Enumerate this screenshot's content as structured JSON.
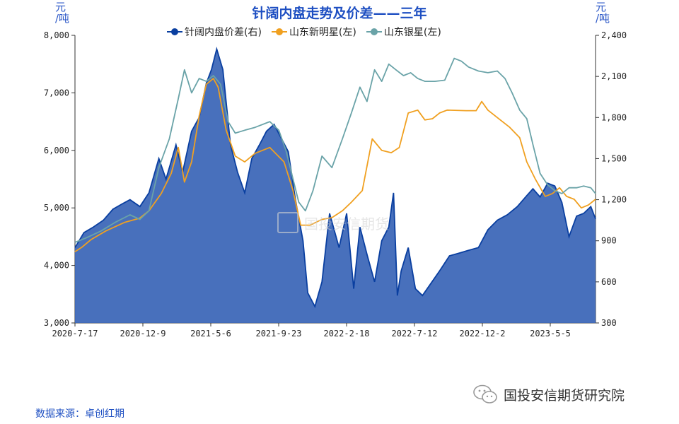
{
  "chart_data": {
    "type": "line",
    "title": "针阔内盘走势及价差——三年",
    "left_axis": {
      "unit": "元/吨",
      "ylim": [
        3000,
        8000
      ],
      "ticks": [
        "3,000",
        "4,000",
        "5,000",
        "6,000",
        "7,000",
        "8,000"
      ]
    },
    "right_axis": {
      "unit": "元/吨",
      "ylim": [
        300,
        2400
      ],
      "ticks": [
        "300",
        "600",
        "900",
        "1,200",
        "1,500",
        "1,800",
        "2,100",
        "2,400"
      ]
    },
    "x_tick_labels": [
      "2020-7-17",
      "2020-12-9",
      "2021-5-6",
      "2021-9-23",
      "2022-2-18",
      "2022-7-12",
      "2022-12-2",
      "2023-5-5"
    ],
    "legend_placement": "top-center",
    "series": [
      {
        "name": "针阔内盘价差(右)",
        "axis": "right",
        "style": "area",
        "color": "#0a3fa0",
        "fill": "#3e68b8",
        "points": [
          [
            "2020-07-17",
            850
          ],
          [
            "2020-08-05",
            960
          ],
          [
            "2020-08-25",
            1000
          ],
          [
            "2020-09-15",
            1050
          ],
          [
            "2020-10-05",
            1130
          ],
          [
            "2020-10-25",
            1170
          ],
          [
            "2020-11-10",
            1200
          ],
          [
            "2020-12-01",
            1150
          ],
          [
            "2020-12-20",
            1250
          ],
          [
            "2021-01-10",
            1500
          ],
          [
            "2021-01-25",
            1350
          ],
          [
            "2021-02-15",
            1600
          ],
          [
            "2021-03-01",
            1400
          ],
          [
            "2021-03-20",
            1700
          ],
          [
            "2021-04-05",
            1800
          ],
          [
            "2021-04-20",
            2050
          ],
          [
            "2021-05-01",
            2150
          ],
          [
            "2021-05-12",
            2300
          ],
          [
            "2021-05-25",
            2150
          ],
          [
            "2021-06-10",
            1600
          ],
          [
            "2021-06-25",
            1400
          ],
          [
            "2021-07-10",
            1250
          ],
          [
            "2021-07-25",
            1500
          ],
          [
            "2021-08-10",
            1600
          ],
          [
            "2021-08-25",
            1700
          ],
          [
            "2021-09-10",
            1750
          ],
          [
            "2021-09-25",
            1650
          ],
          [
            "2021-10-10",
            1550
          ],
          [
            "2021-10-25",
            1200
          ],
          [
            "2021-11-10",
            900
          ],
          [
            "2021-11-20",
            520
          ],
          [
            "2021-12-05",
            420
          ],
          [
            "2021-12-20",
            600
          ],
          [
            "2022-01-05",
            1100
          ],
          [
            "2022-01-25",
            850
          ],
          [
            "2022-02-10",
            1100
          ],
          [
            "2022-02-25",
            550
          ],
          [
            "2022-03-10",
            1000
          ],
          [
            "2022-03-25",
            800
          ],
          [
            "2022-04-10",
            600
          ],
          [
            "2022-04-25",
            900
          ],
          [
            "2022-05-10",
            1000
          ],
          [
            "2022-05-20",
            1250
          ],
          [
            "2022-05-28",
            500
          ],
          [
            "2022-06-05",
            680
          ],
          [
            "2022-06-20",
            850
          ],
          [
            "2022-07-05",
            550
          ],
          [
            "2022-07-20",
            500
          ],
          [
            "2022-08-05",
            580
          ],
          [
            "2022-08-25",
            680
          ],
          [
            "2022-09-15",
            790
          ],
          [
            "2022-10-05",
            810
          ],
          [
            "2022-10-25",
            830
          ],
          [
            "2022-11-15",
            850
          ],
          [
            "2022-12-05",
            980
          ],
          [
            "2022-12-25",
            1050
          ],
          [
            "2023-01-15",
            1090
          ],
          [
            "2023-02-05",
            1150
          ],
          [
            "2023-02-25",
            1230
          ],
          [
            "2023-03-10",
            1280
          ],
          [
            "2023-03-25",
            1220
          ],
          [
            "2023-04-10",
            1320
          ],
          [
            "2023-04-25",
            1300
          ],
          [
            "2023-05-10",
            1180
          ],
          [
            "2023-05-25",
            930
          ],
          [
            "2023-06-10",
            1080
          ],
          [
            "2023-06-25",
            1100
          ],
          [
            "2023-07-10",
            1150
          ],
          [
            "2023-07-20",
            1060
          ]
        ]
      },
      {
        "name": "山东新明星(左)",
        "axis": "left",
        "style": "line",
        "color": "#f0a020",
        "points": [
          [
            "2020-07-17",
            4240
          ],
          [
            "2020-08-01",
            4320
          ],
          [
            "2020-08-20",
            4450
          ],
          [
            "2020-09-20",
            4600
          ],
          [
            "2020-10-30",
            4750
          ],
          [
            "2020-11-30",
            4820
          ],
          [
            "2020-12-20",
            4950
          ],
          [
            "2021-01-15",
            5250
          ],
          [
            "2021-02-05",
            5600
          ],
          [
            "2021-02-20",
            6050
          ],
          [
            "2021-03-05",
            5450
          ],
          [
            "2021-03-20",
            5800
          ],
          [
            "2021-04-05",
            6600
          ],
          [
            "2021-04-20",
            7150
          ],
          [
            "2021-05-05",
            7250
          ],
          [
            "2021-05-15",
            7100
          ],
          [
            "2021-06-01",
            6350
          ],
          [
            "2021-06-20",
            5900
          ],
          [
            "2021-07-10",
            5800
          ],
          [
            "2021-08-01",
            5950
          ],
          [
            "2021-09-01",
            6050
          ],
          [
            "2021-10-01",
            5800
          ],
          [
            "2021-10-20",
            5300
          ],
          [
            "2021-11-05",
            4700
          ],
          [
            "2021-11-25",
            4700
          ],
          [
            "2021-12-20",
            4800
          ],
          [
            "2022-01-10",
            4830
          ],
          [
            "2022-02-01",
            4950
          ],
          [
            "2022-02-20",
            5100
          ],
          [
            "2022-03-15",
            5300
          ],
          [
            "2022-04-05",
            6200
          ],
          [
            "2022-04-25",
            6000
          ],
          [
            "2022-05-15",
            5960
          ],
          [
            "2022-06-01",
            6050
          ],
          [
            "2022-06-20",
            6650
          ],
          [
            "2022-07-10",
            6700
          ],
          [
            "2022-07-25",
            6530
          ],
          [
            "2022-08-10",
            6550
          ],
          [
            "2022-08-25",
            6650
          ],
          [
            "2022-09-10",
            6700
          ],
          [
            "2022-10-20",
            6690
          ],
          [
            "2022-11-10",
            6690
          ],
          [
            "2022-11-22",
            6850
          ],
          [
            "2022-12-05",
            6700
          ],
          [
            "2022-12-25",
            6570
          ],
          [
            "2023-01-20",
            6400
          ],
          [
            "2023-02-10",
            6220
          ],
          [
            "2023-02-25",
            5800
          ],
          [
            "2023-03-15",
            5500
          ],
          [
            "2023-04-05",
            5200
          ],
          [
            "2023-04-20",
            5250
          ],
          [
            "2023-05-05",
            5350
          ],
          [
            "2023-05-20",
            5200
          ],
          [
            "2023-06-05",
            5150
          ],
          [
            "2023-06-20",
            5000
          ],
          [
            "2023-07-05",
            5050
          ],
          [
            "2023-07-20",
            5150
          ]
        ]
      },
      {
        "name": "山东银星(左)",
        "axis": "left",
        "style": "line",
        "color": "#6aa3a8",
        "points": [
          [
            "2020-07-17",
            4400
          ],
          [
            "2020-08-10",
            4480
          ],
          [
            "2020-09-10",
            4600
          ],
          [
            "2020-10-10",
            4750
          ],
          [
            "2020-11-10",
            4880
          ],
          [
            "2020-12-01",
            4800
          ],
          [
            "2020-12-20",
            4950
          ],
          [
            "2021-01-10",
            5700
          ],
          [
            "2021-02-01",
            6200
          ],
          [
            "2021-02-20",
            6900
          ],
          [
            "2021-03-05",
            7400
          ],
          [
            "2021-03-20",
            7000
          ],
          [
            "2021-04-05",
            7250
          ],
          [
            "2021-04-20",
            7200
          ],
          [
            "2021-05-05",
            7300
          ],
          [
            "2021-05-20",
            7150
          ],
          [
            "2021-06-05",
            6500
          ],
          [
            "2021-06-20",
            6300
          ],
          [
            "2021-07-10",
            6350
          ],
          [
            "2021-08-01",
            6400
          ],
          [
            "2021-09-01",
            6500
          ],
          [
            "2021-09-20",
            6350
          ],
          [
            "2021-10-05",
            6000
          ],
          [
            "2021-10-20",
            5500
          ],
          [
            "2021-11-01",
            5100
          ],
          [
            "2021-11-15",
            4950
          ],
          [
            "2021-12-01",
            5300
          ],
          [
            "2021-12-20",
            5900
          ],
          [
            "2022-01-10",
            5700
          ],
          [
            "2022-02-01",
            6200
          ],
          [
            "2022-02-20",
            6650
          ],
          [
            "2022-03-10",
            7100
          ],
          [
            "2022-03-25",
            6850
          ],
          [
            "2022-04-10",
            7400
          ],
          [
            "2022-04-25",
            7200
          ],
          [
            "2022-05-10",
            7500
          ],
          [
            "2022-05-25",
            7400
          ],
          [
            "2022-06-10",
            7300
          ],
          [
            "2022-06-25",
            7350
          ],
          [
            "2022-07-10",
            7250
          ],
          [
            "2022-07-25",
            7200
          ],
          [
            "2022-08-15",
            7200
          ],
          [
            "2022-09-05",
            7220
          ],
          [
            "2022-09-25",
            7600
          ],
          [
            "2022-10-10",
            7550
          ],
          [
            "2022-10-25",
            7450
          ],
          [
            "2022-11-15",
            7380
          ],
          [
            "2022-12-05",
            7350
          ],
          [
            "2022-12-25",
            7380
          ],
          [
            "2023-01-10",
            7250
          ],
          [
            "2023-01-25",
            7000
          ],
          [
            "2023-02-10",
            6700
          ],
          [
            "2023-02-25",
            6550
          ],
          [
            "2023-03-10",
            6100
          ],
          [
            "2023-03-25",
            5600
          ],
          [
            "2023-04-10",
            5400
          ],
          [
            "2023-04-25",
            5300
          ],
          [
            "2023-05-10",
            5250
          ],
          [
            "2023-05-25",
            5350
          ],
          [
            "2023-06-10",
            5350
          ],
          [
            "2023-06-25",
            5380
          ],
          [
            "2023-07-10",
            5350
          ],
          [
            "2023-07-20",
            5250
          ]
        ]
      }
    ]
  },
  "footer": {
    "source": "数据来源：卓创红期",
    "brand": "国投安信期货研究院"
  },
  "watermark": {
    "text": "国投安信期货"
  }
}
